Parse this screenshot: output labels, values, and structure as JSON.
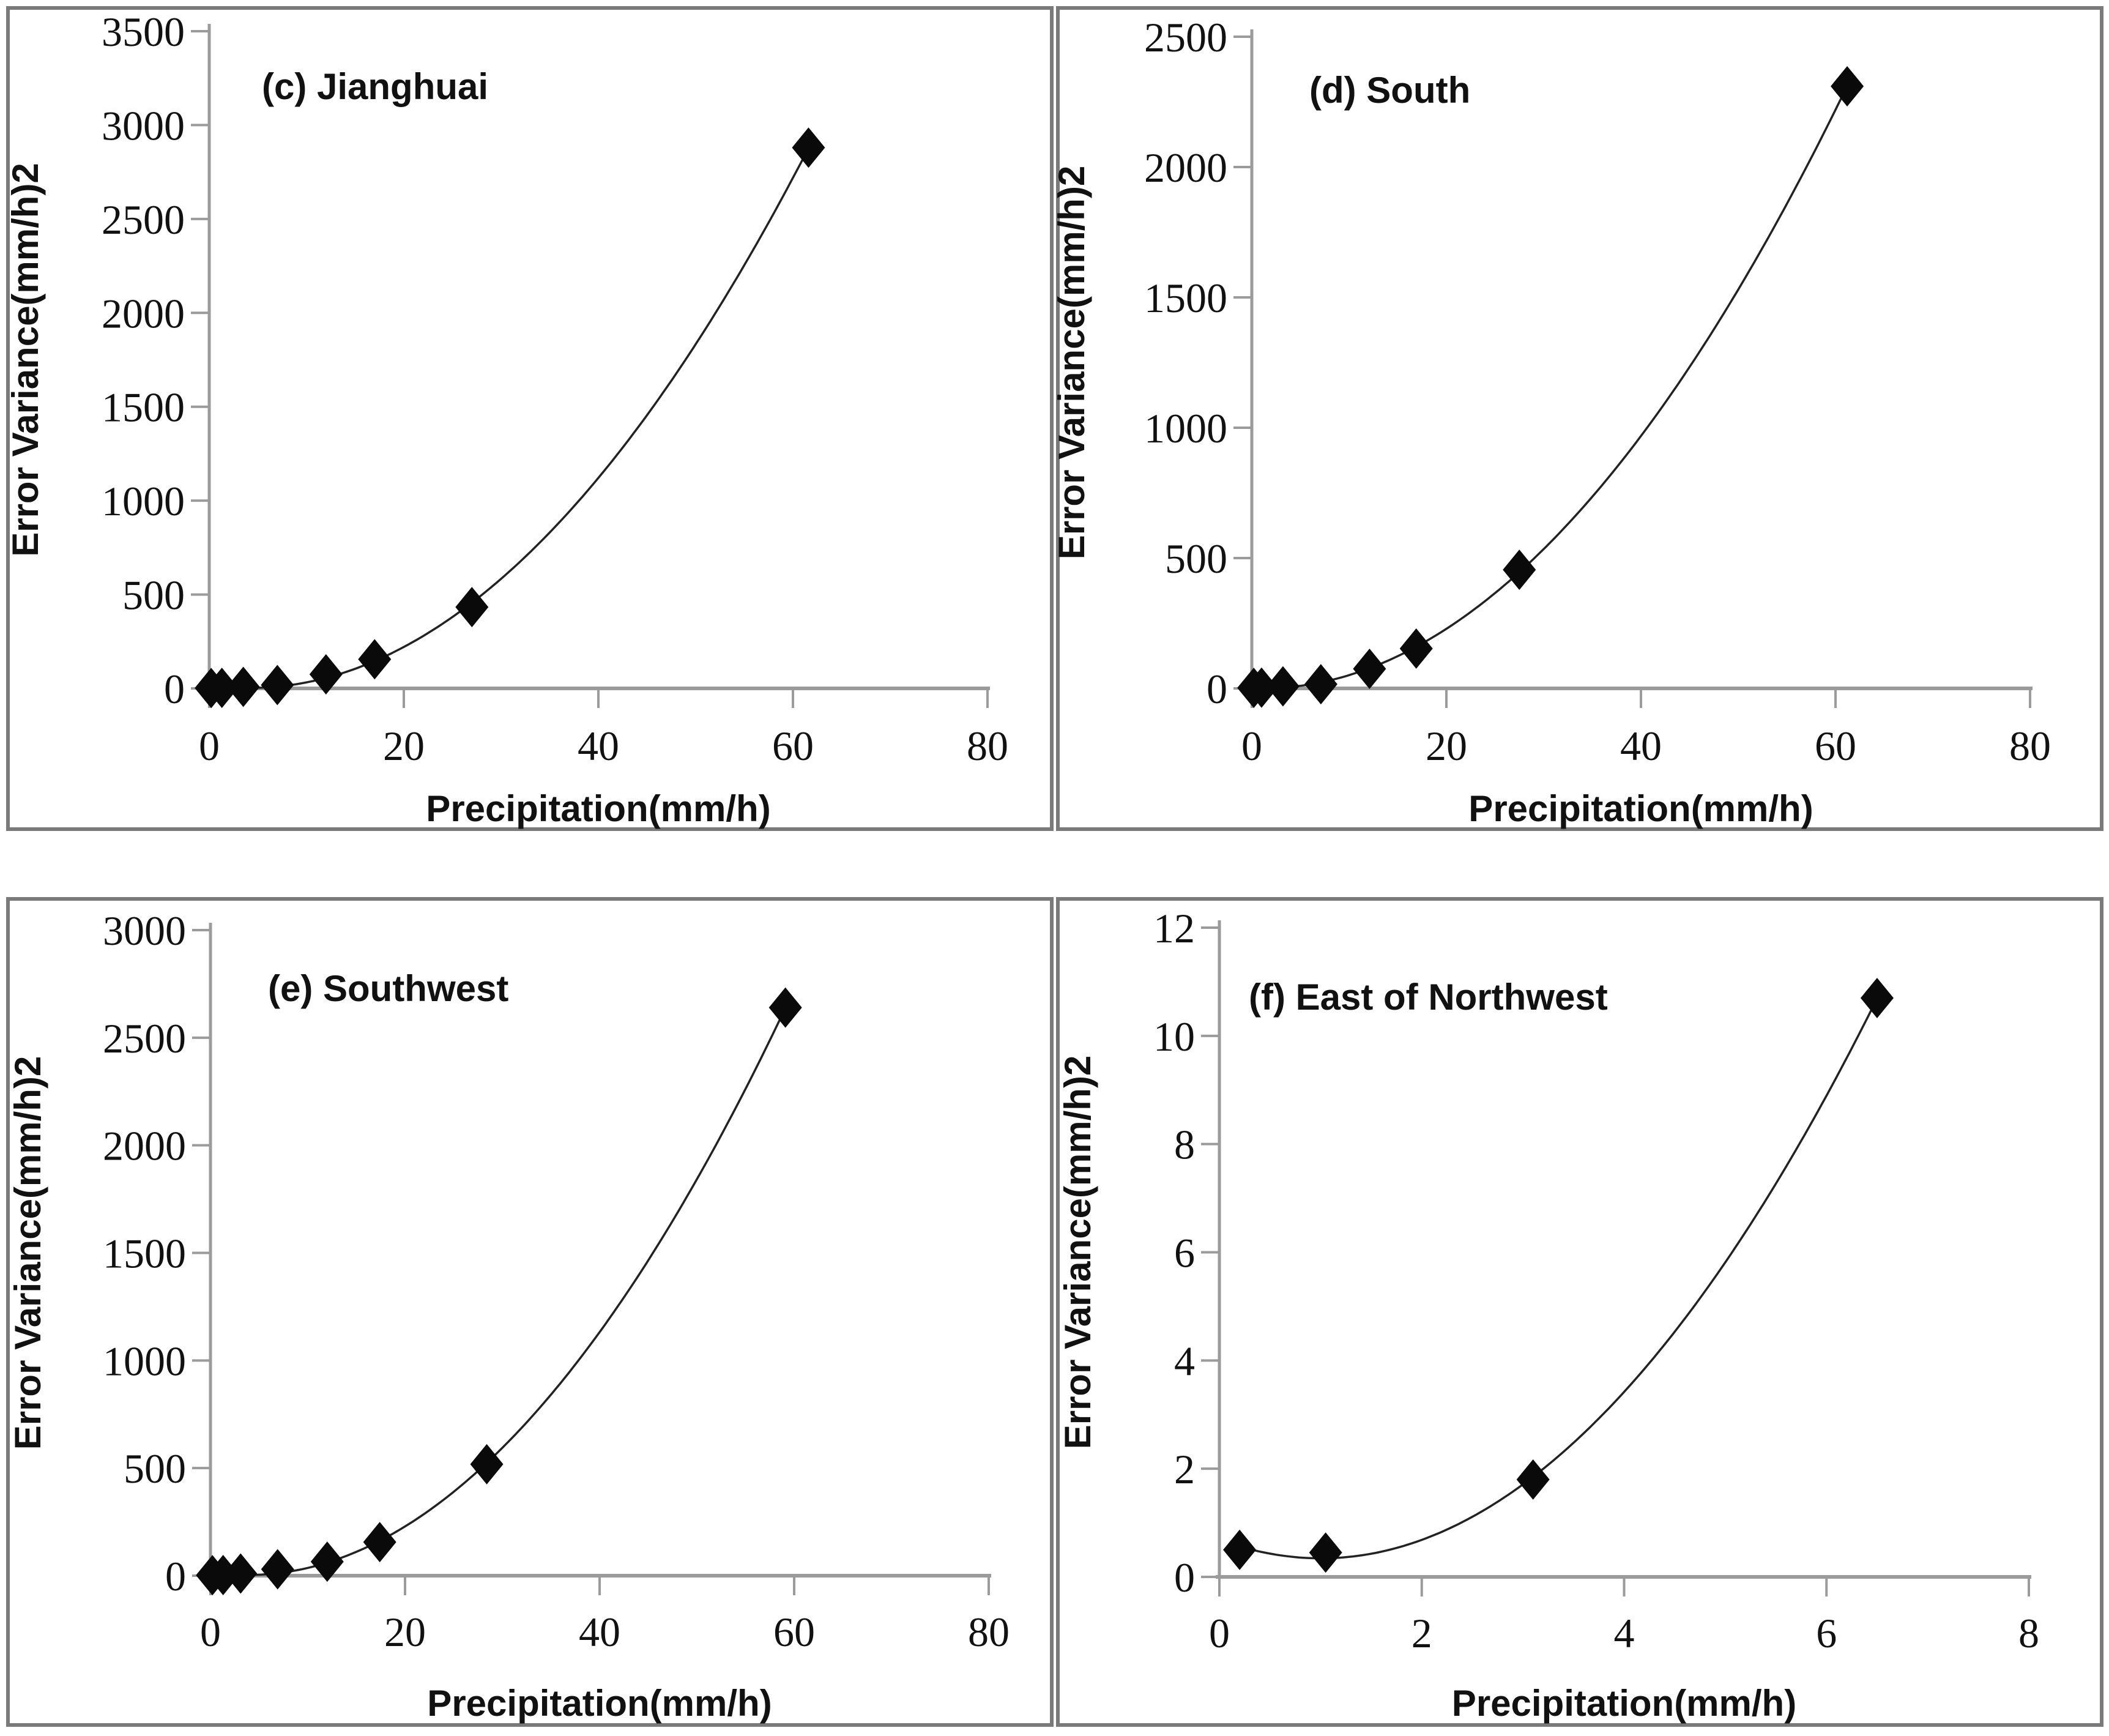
{
  "page": {
    "background": "#ffffff"
  },
  "styles": {
    "panel_border_color": "#7a7a7a",
    "axis_color": "#9b9b9b",
    "curve_color": "#222222",
    "marker_color": "#0a0a0a",
    "text_color": "#111111"
  },
  "chart_data": [
    {
      "id": "c",
      "type": "scatter",
      "title": "(c) Jianghuai",
      "xlabel": "Precipitation(mm/h)",
      "ylabel": "Error Variance(mm/h)2",
      "xlim": [
        0,
        80
      ],
      "ylim": [
        0,
        3500
      ],
      "xticks": [
        0,
        20,
        40,
        60,
        80
      ],
      "yticks": [
        0,
        500,
        1000,
        1500,
        2000,
        2500,
        3000,
        3500
      ],
      "grid": false,
      "legend": "none",
      "marker": "diamond",
      "fit": "quadratic",
      "points": [
        [
          0.2,
          2
        ],
        [
          1.3,
          3
        ],
        [
          3.5,
          8
        ],
        [
          7,
          18
        ],
        [
          12,
          75
        ],
        [
          17,
          155
        ],
        [
          27,
          433
        ],
        [
          61.6,
          2880
        ]
      ]
    },
    {
      "id": "d",
      "type": "scatter",
      "title": "(d) South",
      "xlabel": "Precipitation(mm/h)",
      "ylabel": "Error Variance(mm/h)2",
      "xlim": [
        0,
        80
      ],
      "ylim": [
        0,
        2500
      ],
      "xticks": [
        0,
        20,
        40,
        60,
        80
      ],
      "yticks": [
        0,
        500,
        1000,
        1500,
        2000,
        2500
      ],
      "grid": false,
      "legend": "none",
      "marker": "diamond",
      "fit": "quadratic",
      "points": [
        [
          0.2,
          2
        ],
        [
          1,
          3
        ],
        [
          3.2,
          8
        ],
        [
          7.1,
          16
        ],
        [
          12.1,
          75
        ],
        [
          16.9,
          153
        ],
        [
          27.5,
          455
        ],
        [
          61.2,
          2310
        ]
      ]
    },
    {
      "id": "e",
      "type": "scatter",
      "title": "(e) Southwest",
      "xlabel": "Precipitation(mm/h)",
      "ylabel": "Error Variance(mm/h)2",
      "xlim": [
        0,
        80
      ],
      "ylim": [
        0,
        3000
      ],
      "xticks": [
        0,
        20,
        40,
        60,
        80
      ],
      "yticks": [
        0,
        500,
        1000,
        1500,
        2000,
        2500,
        3000
      ],
      "grid": false,
      "legend": "none",
      "marker": "diamond",
      "fit": "quadratic",
      "points": [
        [
          0.2,
          2
        ],
        [
          1.3,
          3
        ],
        [
          3.1,
          10
        ],
        [
          6.9,
          30
        ],
        [
          12,
          65
        ],
        [
          17.4,
          156
        ],
        [
          28.4,
          518
        ],
        [
          59.1,
          2640
        ]
      ]
    },
    {
      "id": "f",
      "type": "scatter",
      "title": "(f) East of Northwest",
      "xlabel": "Precipitation(mm/h)",
      "ylabel": "Error Variance(mm/h)2",
      "xlim": [
        0,
        8
      ],
      "ylim": [
        0,
        12
      ],
      "xticks": [
        0,
        2,
        4,
        6,
        8
      ],
      "yticks": [
        0,
        2,
        4,
        6,
        8,
        10,
        12
      ],
      "grid": false,
      "legend": "none",
      "marker": "diamond",
      "fit": "quadratic",
      "points": [
        [
          0.2,
          0.5
        ],
        [
          1.05,
          0.45
        ],
        [
          3.1,
          1.8
        ],
        [
          6.5,
          10.7
        ]
      ]
    }
  ]
}
